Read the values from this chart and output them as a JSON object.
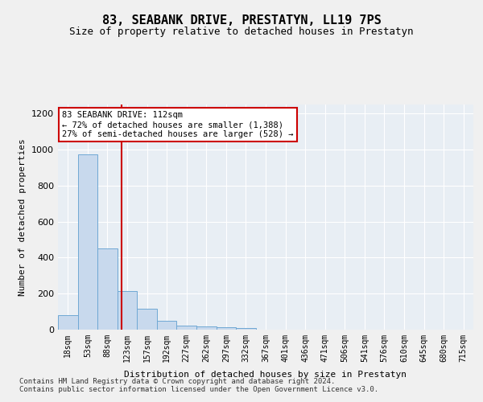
{
  "title": "83, SEABANK DRIVE, PRESTATYN, LL19 7PS",
  "subtitle": "Size of property relative to detached houses in Prestatyn",
  "xlabel": "Distribution of detached houses by size in Prestatyn",
  "ylabel": "Number of detached properties",
  "bin_labels": [
    "18sqm",
    "53sqm",
    "88sqm",
    "123sqm",
    "157sqm",
    "192sqm",
    "227sqm",
    "262sqm",
    "297sqm",
    "332sqm",
    "367sqm",
    "401sqm",
    "436sqm",
    "471sqm",
    "506sqm",
    "541sqm",
    "576sqm",
    "610sqm",
    "645sqm",
    "680sqm",
    "715sqm"
  ],
  "bar_values": [
    80,
    975,
    450,
    215,
    115,
    48,
    22,
    18,
    14,
    8,
    0,
    0,
    0,
    0,
    0,
    0,
    0,
    0,
    0,
    0,
    0
  ],
  "bar_color": "#c8d9ed",
  "bar_edge_color": "#6fa8d4",
  "red_line_x": 2.72,
  "annotation_text": "83 SEABANK DRIVE: 112sqm\n← 72% of detached houses are smaller (1,388)\n27% of semi-detached houses are larger (528) →",
  "annotation_box_color": "#ffffff",
  "annotation_box_edge": "#cc0000",
  "ylim": [
    0,
    1250
  ],
  "yticks": [
    0,
    200,
    400,
    600,
    800,
    1000,
    1200
  ],
  "footer": "Contains HM Land Registry data © Crown copyright and database right 2024.\nContains public sector information licensed under the Open Government Licence v3.0.",
  "bg_color": "#e8eef4",
  "plot_bg_color": "#e8eef4",
  "grid_color": "#ffffff"
}
